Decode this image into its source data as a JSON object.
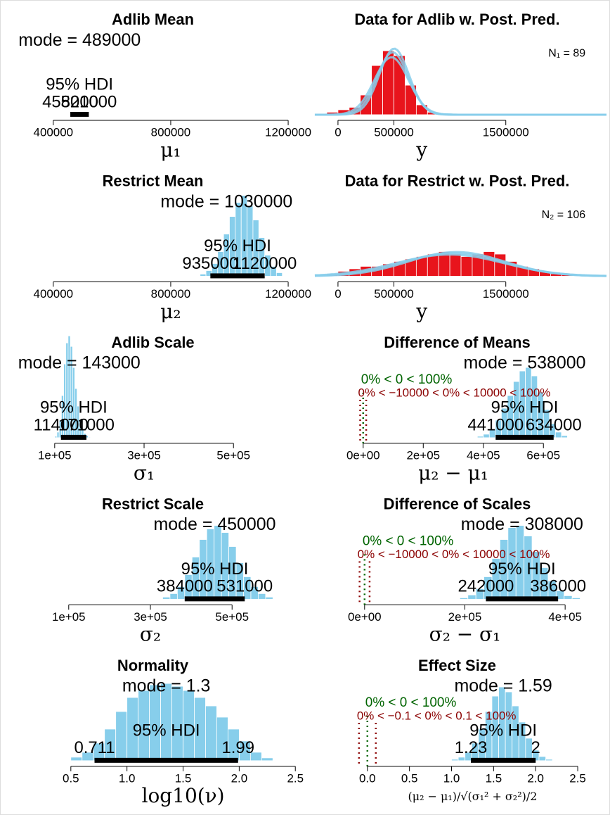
{
  "chart_data": [
    {
      "type": "histogram",
      "title": "Adlib Mean",
      "mode_label": "mode = 489000",
      "hdi_label": "95% HDI",
      "hdi": [
        458000,
        521000
      ],
      "xlim": [
        268700,
        1235800
      ],
      "xticks": [
        400000,
        800000,
        1200000
      ],
      "xlabel": "μ₁",
      "color": "#87ceeb"
    },
    {
      "type": "predictive",
      "title": "Data for Adlib w. Post. Pred.",
      "n_label": "N₁ = 89",
      "n": 89,
      "bins": [
        -100000,
        0,
        100000,
        200000,
        300000,
        400000,
        500000,
        600000,
        700000,
        800000,
        900000
      ],
      "counts": [
        1,
        2,
        3,
        8,
        20,
        26,
        24,
        12,
        4,
        1
      ],
      "color": "#e8141c",
      "curve_color": "#87ceeb",
      "curves": [
        {
          "mean": 489000,
          "sd": 140000
        },
        {
          "mean": 478000,
          "sd": 152000
        },
        {
          "mean": 502000,
          "sd": 132000
        }
      ],
      "xlim": [
        -207000,
        2400000
      ],
      "xticks": [
        0,
        500000,
        1500000
      ],
      "xlabel": "y"
    },
    {
      "type": "histogram",
      "title": "Restrict Mean",
      "mode_label": "mode = 1030000",
      "hdi_label": "95% HDI",
      "hdi": [
        935000,
        1120000
      ],
      "bins": [
        900000,
        920000,
        940000,
        960000,
        980000,
        1000000,
        1020000,
        1040000,
        1060000,
        1080000,
        1100000,
        1120000,
        1140000,
        1160000,
        1180000
      ],
      "counts": [
        3,
        8,
        18,
        35,
        60,
        85,
        105,
        115,
        100,
        80,
        55,
        30,
        14,
        5
      ],
      "xlim": [
        268700,
        1235800
      ],
      "xticks": [
        400000,
        800000,
        1200000
      ],
      "xlabel": "μ₂",
      "color": "#87ceeb"
    },
    {
      "type": "predictive",
      "title": "Data for Restrict w. Post. Pred.",
      "n_label": "N₂ = 106",
      "n": 106,
      "bins": [
        -100000,
        0,
        100000,
        200000,
        300000,
        400000,
        500000,
        600000,
        700000,
        800000,
        900000,
        1000000,
        1100000,
        1200000,
        1300000,
        1400000,
        1500000,
        1600000,
        1700000,
        1800000,
        1900000,
        2000000,
        2100000
      ],
      "counts": [
        1,
        2,
        3,
        4,
        4,
        5,
        6,
        7,
        8,
        9,
        10,
        9,
        8,
        9,
        10,
        9,
        6,
        4,
        3,
        2,
        1,
        1
      ],
      "color": "#e8141c",
      "curve_color": "#87ceeb",
      "curves": [
        {
          "mean": 1030000,
          "sd": 450000
        },
        {
          "mean": 1000000,
          "sd": 480000
        },
        {
          "mean": 1060000,
          "sd": 430000
        }
      ],
      "xlim": [
        -207000,
        2400000
      ],
      "xticks": [
        0,
        500000,
        1500000
      ],
      "xlabel": "y"
    },
    {
      "type": "histogram",
      "title": "Adlib Scale",
      "mode_label": "mode = 143000",
      "hdi_label": "95% HDI",
      "hdi": [
        114000,
        171000
      ],
      "bins": [
        100000,
        105000,
        110000,
        115000,
        120000,
        125000,
        130000,
        135000,
        140000,
        145000,
        150000,
        155000,
        160000,
        165000,
        170000,
        175000,
        180000
      ],
      "counts": [
        2,
        8,
        25,
        60,
        105,
        135,
        145,
        130,
        100,
        70,
        45,
        25,
        12,
        6,
        3,
        1
      ],
      "xlim": [
        10600,
        645900
      ],
      "xticks": [
        {
          "value": 100000,
          "label": "1e+05"
        },
        {
          "value": 300000,
          "label": "3e+05"
        },
        {
          "value": 500000,
          "label": "5e+05"
        }
      ],
      "xlabel": "σ₁",
      "color": "#87ceeb"
    },
    {
      "type": "histogram",
      "title": "Difference of Means",
      "mode_label": "mode = 538000",
      "hdi_label": "95% HDI",
      "hdi": [
        441000,
        634000
      ],
      "bins": [
        380000,
        400000,
        420000,
        440000,
        460000,
        480000,
        500000,
        520000,
        540000,
        560000,
        580000,
        600000,
        620000,
        640000,
        660000,
        680000
      ],
      "counts": [
        2,
        5,
        12,
        25,
        42,
        60,
        80,
        95,
        100,
        88,
        65,
        40,
        20,
        8,
        3
      ],
      "comp_value": 0,
      "comp_label": "0% < 0 < 100%",
      "rope": [
        -10000,
        10000
      ],
      "rope_label": "0% < −10000 < 0% < 10000 < 100%",
      "xlim": [
        -161000,
        810000
      ],
      "xticks": [
        {
          "value": 0,
          "label": "0e+00"
        },
        {
          "value": 200000,
          "label": "2e+05"
        },
        {
          "value": 400000,
          "label": "4e+05"
        },
        {
          "value": 600000,
          "label": "6e+05"
        }
      ],
      "xlabel": "μ₂ − μ₁",
      "color": "#87ceeb"
    },
    {
      "type": "histogram",
      "title": "Restrict Scale",
      "mode_label": "mode = 450000",
      "hdi_label": "95% HDI",
      "hdi": [
        384000,
        531000
      ],
      "bins": [
        330000,
        348000,
        366000,
        384000,
        402000,
        420000,
        438000,
        456000,
        474000,
        492000,
        510000,
        528000,
        546000,
        564000,
        582000,
        600000
      ],
      "counts": [
        3,
        8,
        18,
        35,
        60,
        85,
        100,
        105,
        95,
        75,
        52,
        32,
        18,
        8,
        3
      ],
      "xlim": [
        -32200,
        663100
      ],
      "xticks": [
        {
          "value": 100000,
          "label": "1e+05"
        },
        {
          "value": 300000,
          "label": "3e+05"
        },
        {
          "value": 500000,
          "label": "5e+05"
        }
      ],
      "xlabel": "σ₂",
      "color": "#87ceeb"
    },
    {
      "type": "histogram",
      "title": "Difference of Scales",
      "mode_label": "mode = 308000",
      "hdi_label": "95% HDI",
      "hdi": [
        242000,
        386000
      ],
      "bins": [
        190000,
        206000,
        222000,
        238000,
        254000,
        270000,
        286000,
        302000,
        318000,
        334000,
        350000,
        366000,
        382000,
        398000,
        414000,
        430000
      ],
      "counts": [
        2,
        6,
        15,
        32,
        58,
        85,
        102,
        105,
        90,
        68,
        45,
        26,
        12,
        5,
        2
      ],
      "comp_value": 0,
      "comp_label": "0% < 0 < 100%",
      "rope": [
        -10000,
        10000
      ],
      "rope_label": "0% < −10000 < 0% < 10000 < 100%",
      "xlim": [
        -99300,
        482500
      ],
      "xticks": [
        {
          "value": 0,
          "label": "0e+00"
        },
        {
          "value": 200000,
          "label": "2e+05"
        },
        {
          "value": 400000,
          "label": "4e+05"
        }
      ],
      "xlabel": "σ₂ − σ₁",
      "color": "#87ceeb"
    },
    {
      "type": "histogram",
      "title": "Normality",
      "mode_label": "mode = 1.3",
      "hdi_label": "95% HDI",
      "hdi": [
        0.711,
        1.99
      ],
      "bins": [
        0.5,
        0.6,
        0.7,
        0.8,
        0.9,
        1.0,
        1.1,
        1.2,
        1.3,
        1.4,
        1.5,
        1.6,
        1.7,
        1.8,
        1.9,
        2.0,
        2.1,
        2.2,
        2.3
      ],
      "counts": [
        5,
        12,
        25,
        45,
        70,
        90,
        100,
        108,
        110,
        106,
        100,
        90,
        78,
        62,
        45,
        28,
        12,
        4
      ],
      "xlim": [
        0,
        2.53
      ],
      "xticks": [
        0.5,
        {
          "value": 1,
          "label": "1.0"
        },
        1.5,
        {
          "value": 2,
          "label": "2.0"
        },
        2.5
      ],
      "xlabel": "log10(ν)",
      "color": "#87ceeb"
    },
    {
      "type": "histogram",
      "title": "Effect Size",
      "mode_label": "mode = 1.59",
      "hdi_label": "95% HDI",
      "hdi": [
        1.23,
        2
      ],
      "bins": [
        1.0,
        1.08,
        1.16,
        1.24,
        1.32,
        1.4,
        1.48,
        1.56,
        1.64,
        1.72,
        1.8,
        1.88,
        1.96,
        2.04,
        2.12,
        2.2
      ],
      "counts": [
        2,
        5,
        12,
        25,
        45,
        70,
        92,
        105,
        98,
        78,
        55,
        32,
        15,
        6,
        2
      ],
      "comp_value": 0,
      "comp_label": "0% < 0 < 100%",
      "rope": [
        -0.1,
        0.1
      ],
      "rope_label": "0% < −0.1 < 0% < 0.1 < 100%",
      "xlim": [
        -0.625,
        2.842
      ],
      "xticks": [
        {
          "value": 0,
          "label": "0.0"
        },
        0.5,
        {
          "value": 1,
          "label": "1.0"
        },
        1.5,
        {
          "value": 2,
          "label": "2.0"
        },
        2.5
      ],
      "xlabel": "(μ₂ − μ₁)/√(σ₁² + σ₂²)/2",
      "color": "#87ceeb"
    }
  ]
}
